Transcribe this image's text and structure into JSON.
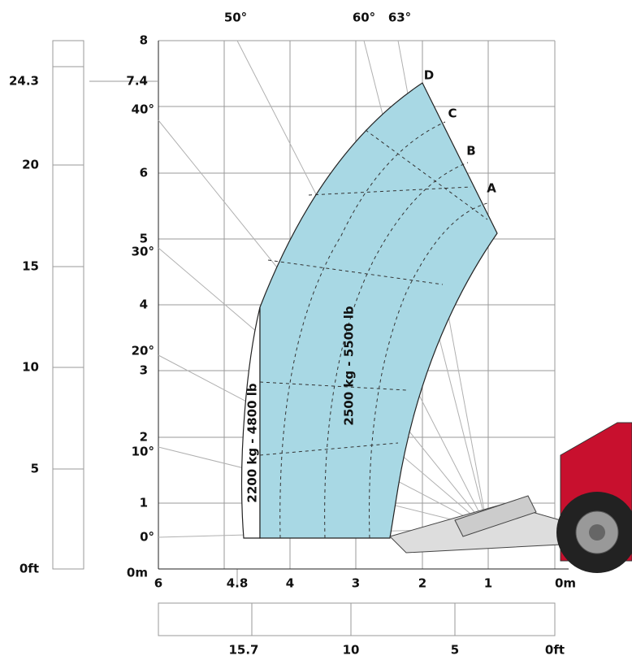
{
  "axes": {
    "height_m_ticks": [
      "8",
      "7.4",
      "6",
      "5",
      "4",
      "3",
      "2",
      "1",
      "0m"
    ],
    "reach_m_ticks": [
      "6",
      "4.8",
      "4",
      "3",
      "2",
      "1",
      "0m"
    ],
    "height_ft_ticks": [
      "24.3",
      "20",
      "15",
      "10",
      "5",
      "0ft"
    ],
    "reach_ft_ticks": [
      "15.7",
      "10",
      "5",
      "0ft"
    ],
    "angles_left": [
      "40°",
      "30°",
      "20°",
      "10°",
      "0°"
    ],
    "angles_top": [
      "50°",
      "60°",
      "63°"
    ]
  },
  "zones": [
    {
      "label": "2500 kg - 5500 lb"
    },
    {
      "label": "2200 kg - 4800 lb"
    }
  ],
  "points": [
    "A",
    "B",
    "C",
    "D"
  ]
}
